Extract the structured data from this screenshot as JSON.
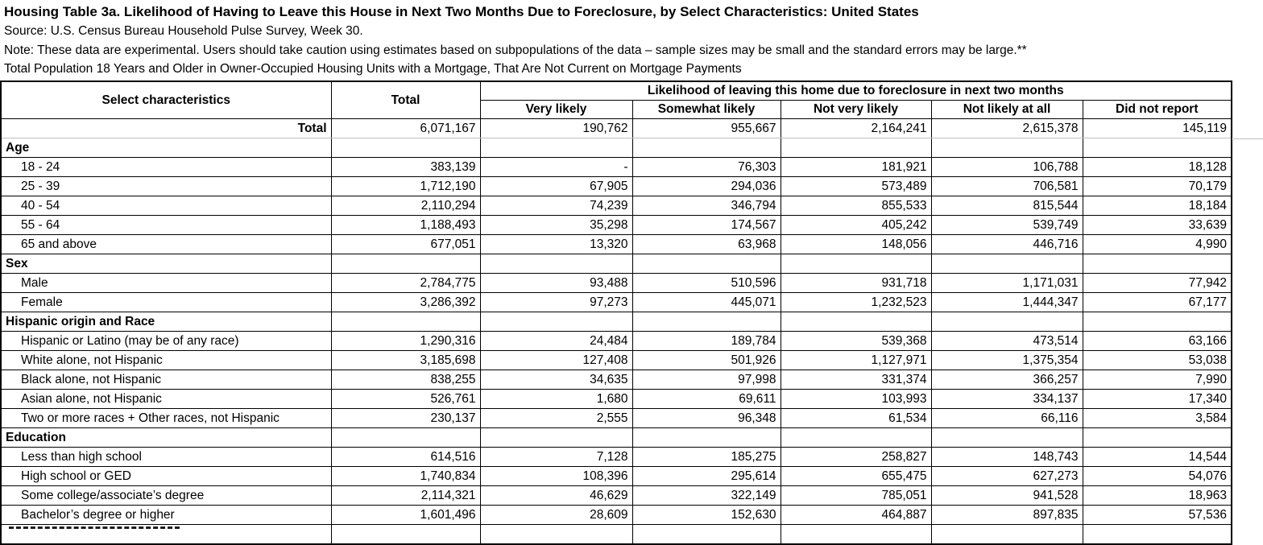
{
  "page": {
    "title": "Housing Table 3a. Likelihood of Having to Leave this House in Next Two Months Due to Foreclosure, by Select Characteristics: United States",
    "source": "Source: U.S. Census Bureau Household Pulse Survey, Week 30.",
    "note": "Note: These data are experimental. Users should take caution using estimates based on subpopulations of the data – sample sizes may be small and the standard errors may be large.**",
    "universe": "Total Population 18 Years and Older in Owner-Occupied Housing Units with a Mortgage, That Are Not Current on Mortgage Payments"
  },
  "colors": {
    "text": "#000000",
    "border": "#000000",
    "light_gridline": "#bfbfbf",
    "background": "#ffffff"
  },
  "table": {
    "col1_header": "Select characteristics",
    "col2_header": "Total",
    "span_header": "Likelihood of leaving this home due to foreclosure in next two months",
    "sub_headers": [
      "Very likely",
      "Somewhat likely",
      "Not very likely",
      "Not likely at all",
      "Did not report"
    ],
    "rows": [
      {
        "type": "total",
        "label": "Total",
        "values": [
          "6,071,167",
          "190,762",
          "955,667",
          "2,164,241",
          "2,615,378",
          "145,119"
        ]
      },
      {
        "type": "section",
        "label": "Age",
        "values": [
          "",
          "",
          "",
          "",
          "",
          ""
        ]
      },
      {
        "type": "data",
        "label": "18 - 24",
        "values": [
          "383,139",
          "-",
          "76,303",
          "181,921",
          "106,788",
          "18,128"
        ]
      },
      {
        "type": "data",
        "label": "25 - 39",
        "values": [
          "1,712,190",
          "67,905",
          "294,036",
          "573,489",
          "706,581",
          "70,179"
        ]
      },
      {
        "type": "data",
        "label": "40 - 54",
        "values": [
          "2,110,294",
          "74,239",
          "346,794",
          "855,533",
          "815,544",
          "18,184"
        ]
      },
      {
        "type": "data",
        "label": "55 - 64",
        "values": [
          "1,188,493",
          "35,298",
          "174,567",
          "405,242",
          "539,749",
          "33,639"
        ]
      },
      {
        "type": "data",
        "label": "65 and above",
        "values": [
          "677,051",
          "13,320",
          "63,968",
          "148,056",
          "446,716",
          "4,990"
        ]
      },
      {
        "type": "section",
        "label": "Sex",
        "values": [
          "",
          "",
          "",
          "",
          "",
          ""
        ]
      },
      {
        "type": "data",
        "label": "Male",
        "values": [
          "2,784,775",
          "93,488",
          "510,596",
          "931,718",
          "1,171,031",
          "77,942"
        ]
      },
      {
        "type": "data",
        "label": "Female",
        "values": [
          "3,286,392",
          "97,273",
          "445,071",
          "1,232,523",
          "1,444,347",
          "67,177"
        ]
      },
      {
        "type": "section",
        "label": "Hispanic origin and Race",
        "values": [
          "",
          "",
          "",
          "",
          "",
          ""
        ]
      },
      {
        "type": "data",
        "label": "Hispanic or Latino (may be of any race)",
        "values": [
          "1,290,316",
          "24,484",
          "189,784",
          "539,368",
          "473,514",
          "63,166"
        ]
      },
      {
        "type": "data",
        "label": "White alone, not Hispanic",
        "values": [
          "3,185,698",
          "127,408",
          "501,926",
          "1,127,971",
          "1,375,354",
          "53,038"
        ]
      },
      {
        "type": "data",
        "label": "Black alone, not Hispanic",
        "values": [
          "838,255",
          "34,635",
          "97,998",
          "331,374",
          "366,257",
          "7,990"
        ]
      },
      {
        "type": "data",
        "label": "Asian alone, not Hispanic",
        "values": [
          "526,761",
          "1,680",
          "69,611",
          "103,993",
          "334,137",
          "17,340"
        ]
      },
      {
        "type": "data",
        "label": "Two or more races + Other races, not Hispanic",
        "values": [
          "230,137",
          "2,555",
          "96,348",
          "61,534",
          "66,116",
          "3,584"
        ]
      },
      {
        "type": "section",
        "label": "Education",
        "values": [
          "",
          "",
          "",
          "",
          "",
          ""
        ]
      },
      {
        "type": "data",
        "label": "Less than high school",
        "values": [
          "614,516",
          "7,128",
          "185,275",
          "258,827",
          "148,743",
          "14,544"
        ]
      },
      {
        "type": "data",
        "label": "High school or GED",
        "values": [
          "1,740,834",
          "108,396",
          "295,614",
          "655,475",
          "627,273",
          "54,076"
        ]
      },
      {
        "type": "data",
        "label": "Some college/associate’s degree",
        "values": [
          "2,114,321",
          "46,629",
          "322,149",
          "785,051",
          "941,528",
          "18,963"
        ]
      },
      {
        "type": "data",
        "label": "Bachelor’s degree or higher",
        "values": [
          "1,601,496",
          "28,609",
          "152,630",
          "464,887",
          "897,835",
          "57,536"
        ]
      },
      {
        "type": "clipped",
        "label": "",
        "values": [
          "",
          "",
          "",
          "",
          "",
          ""
        ]
      }
    ]
  }
}
